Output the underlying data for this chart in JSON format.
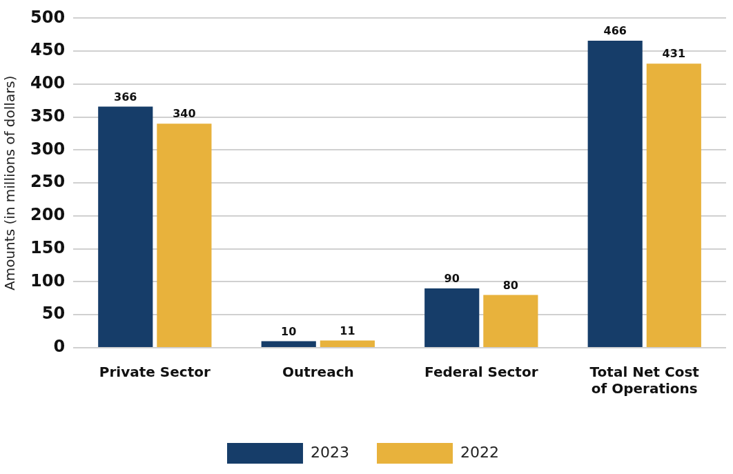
{
  "chart_data": {
    "type": "bar",
    "ylabel": "Amounts (in millions of dollars)",
    "categories": [
      "Private Sector",
      "Outreach",
      "Federal Sector",
      "Total Net Cost of Operations"
    ],
    "series": [
      {
        "name": "2023",
        "color": "#163d69",
        "values": [
          366,
          10,
          90,
          466
        ]
      },
      {
        "name": "2022",
        "color": "#e8b23c",
        "values": [
          340,
          11,
          80,
          431
        ]
      }
    ],
    "ylim": [
      0,
      500
    ],
    "yticks": [
      0,
      50,
      100,
      150,
      200,
      250,
      300,
      350,
      400,
      450,
      500
    ],
    "grid": "y",
    "legend": "bottom",
    "data_labels": true
  }
}
